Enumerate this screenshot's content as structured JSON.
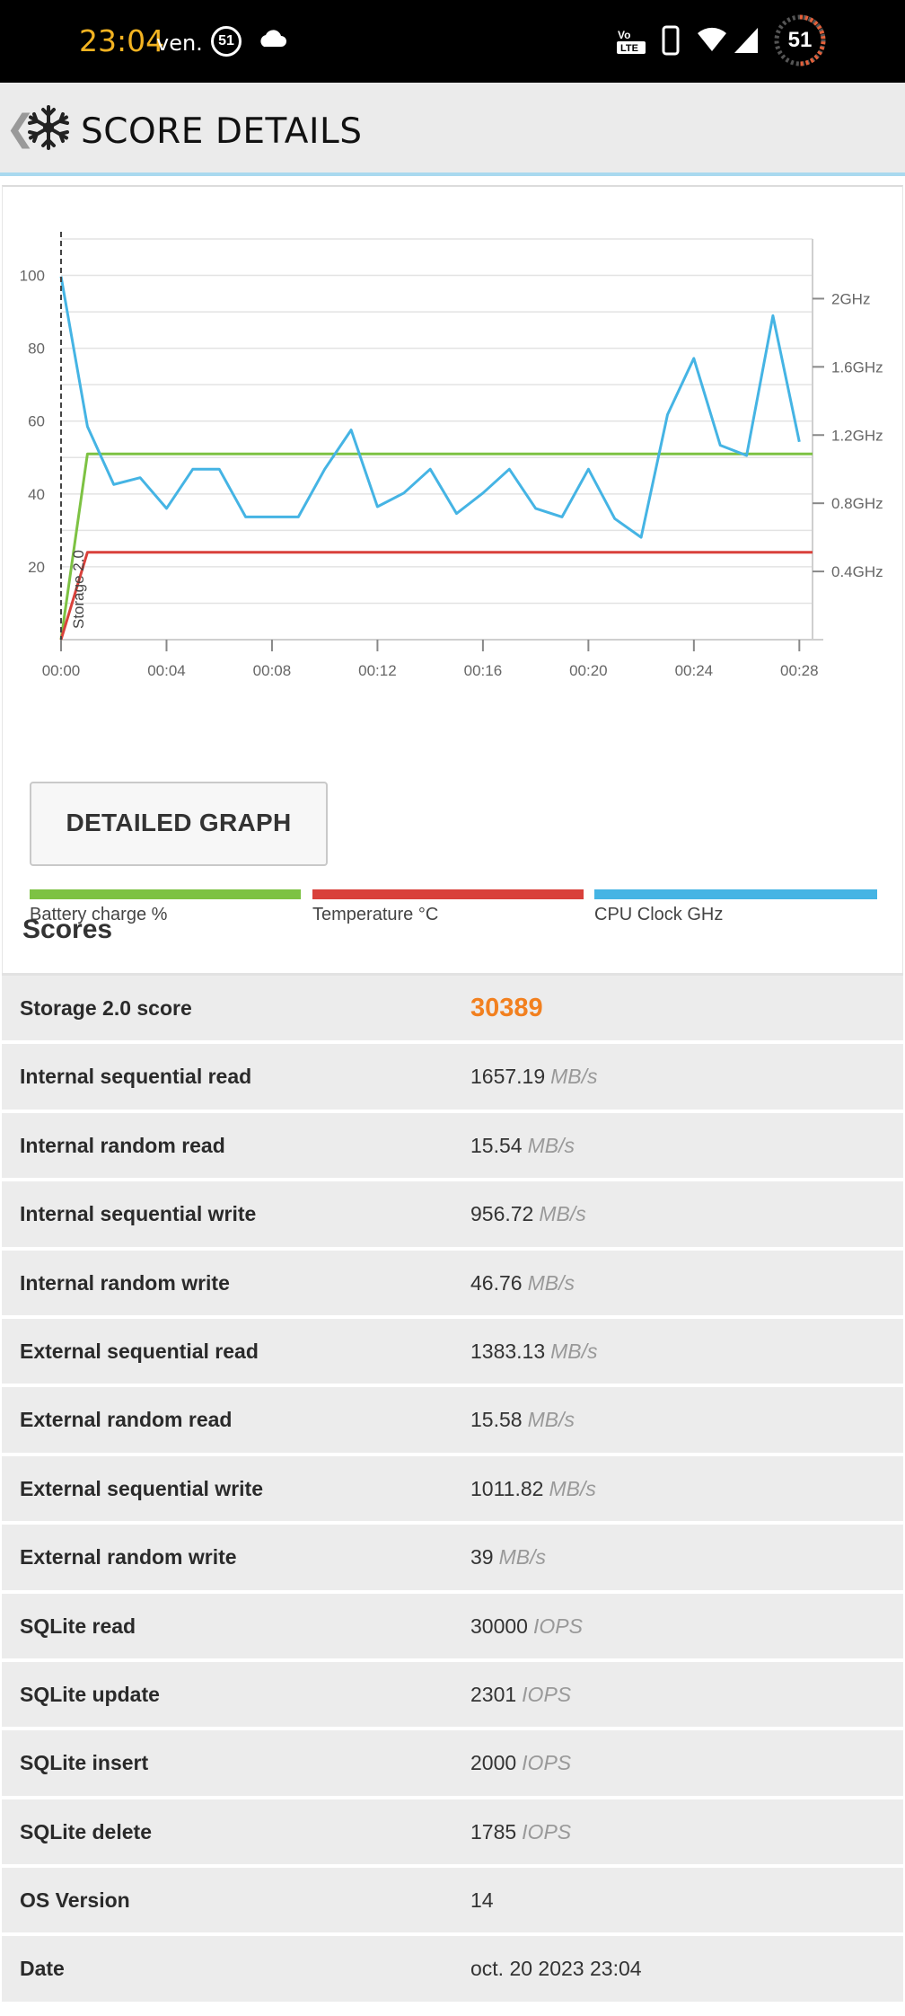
{
  "status_bar": {
    "time": "23:04",
    "day": "ven.",
    "notification_count": "51",
    "battery": "51",
    "icons": [
      "cloud-icon",
      "volte-icon",
      "phone-icon",
      "wifi-icon",
      "signal-icon",
      "battery-ring-icon"
    ]
  },
  "app_bar": {
    "back_glyph": "❮",
    "title": "SCORE DETAILS",
    "icon": "snowflake-icon"
  },
  "chart_data": {
    "type": "line",
    "x_ticks": [
      "00:00",
      "00:04",
      "00:08",
      "00:12",
      "00:16",
      "00:20",
      "00:24",
      "00:28"
    ],
    "xlim": [
      0,
      28.5
    ],
    "y_left_ticks": [
      "20",
      "40",
      "60",
      "80",
      "100"
    ],
    "ylim_left": [
      0,
      110
    ],
    "y_right_ticks": [
      "0.4GHz",
      "0.8GHz",
      "1.2GHz",
      "1.6GHz",
      "2GHz"
    ],
    "ylim_right_ghz": [
      0,
      2.35
    ],
    "marker_label": "Storage 2.0",
    "grid": true,
    "series": [
      {
        "name": "Battery charge %",
        "color": "#7dc243",
        "axis": "left",
        "x": [
          0,
          1,
          28.5
        ],
        "y": [
          0,
          51,
          51
        ]
      },
      {
        "name": "Temperature °C",
        "color": "#d9413b",
        "axis": "left",
        "x": [
          0,
          1,
          28.5
        ],
        "y": [
          0,
          24,
          24
        ]
      },
      {
        "name": "CPU Clock GHz",
        "color": "#45b4e4",
        "axis": "right",
        "x": [
          0,
          1,
          2,
          3,
          4,
          5,
          6,
          7,
          8,
          9,
          10,
          11,
          12,
          13,
          14,
          15,
          16,
          17,
          18,
          19,
          20,
          21,
          22,
          23,
          24,
          25,
          26,
          27,
          28
        ],
        "y": [
          2.13,
          1.25,
          0.91,
          0.95,
          0.77,
          1.0,
          1.0,
          0.72,
          0.72,
          0.72,
          1.0,
          1.23,
          0.78,
          0.86,
          1.0,
          0.74,
          0.86,
          1.0,
          0.77,
          0.72,
          1.0,
          0.71,
          0.6,
          1.32,
          1.65,
          1.14,
          1.08,
          1.9,
          1.16
        ]
      }
    ]
  },
  "legend": [
    {
      "label": "Battery charge %",
      "color": "#7dc243"
    },
    {
      "label": "Temperature °C",
      "color": "#d9413b"
    },
    {
      "label": "CPU Clock GHz",
      "color": "#45b4e4"
    }
  ],
  "detailed_graph_label": "DETAILED GRAPH",
  "scores_title": "Scores",
  "rows": [
    {
      "label": "Storage 2.0 score",
      "value": "30389",
      "unit": "",
      "highlight": true
    },
    {
      "label": "Internal sequential read",
      "value": "1657.19",
      "unit": "MB/s"
    },
    {
      "label": "Internal random read",
      "value": "15.54",
      "unit": "MB/s"
    },
    {
      "label": "Internal sequential write",
      "value": "956.72",
      "unit": "MB/s"
    },
    {
      "label": "Internal random write",
      "value": "46.76",
      "unit": "MB/s"
    },
    {
      "label": "External sequential read",
      "value": "1383.13",
      "unit": "MB/s"
    },
    {
      "label": "External random read",
      "value": "15.58",
      "unit": "MB/s"
    },
    {
      "label": "External sequential write",
      "value": "1011.82",
      "unit": "MB/s"
    },
    {
      "label": "External random write",
      "value": "39",
      "unit": "MB/s"
    },
    {
      "label": "SQLite read",
      "value": "30000",
      "unit": "IOPS"
    },
    {
      "label": "SQLite update",
      "value": "2301",
      "unit": "IOPS"
    },
    {
      "label": "SQLite insert",
      "value": "2000",
      "unit": "IOPS"
    },
    {
      "label": "SQLite delete",
      "value": "1785",
      "unit": "IOPS"
    },
    {
      "label": "OS Version",
      "value": "14",
      "unit": ""
    },
    {
      "label": "Date",
      "value": "oct. 20 2023 23:04",
      "unit": ""
    }
  ]
}
